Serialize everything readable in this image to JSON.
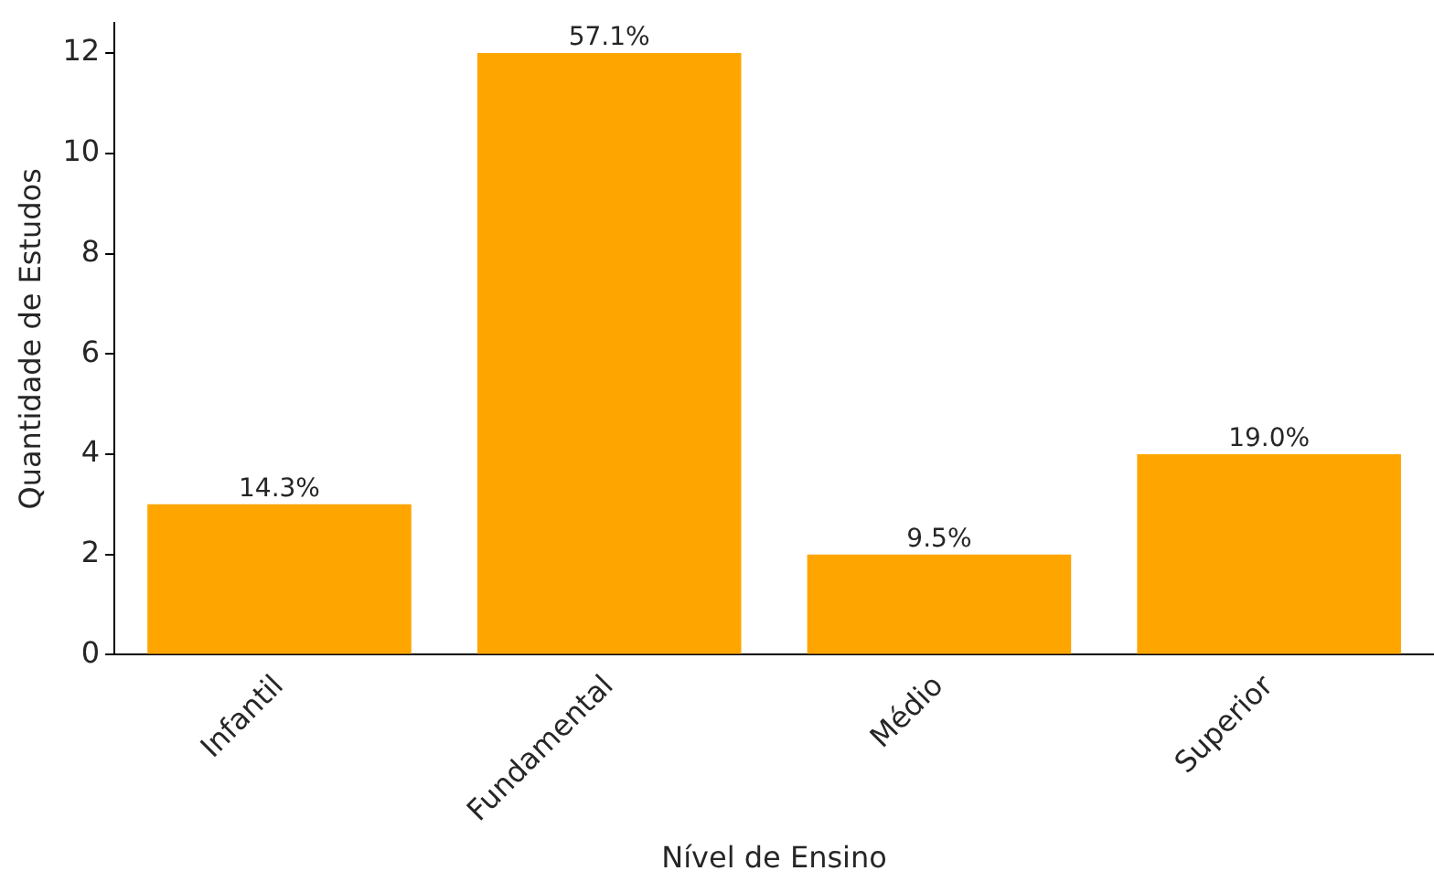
{
  "chart_data": {
    "type": "bar",
    "xlabel": "Nível de Ensino",
    "ylabel": "Quantidade de Estudos",
    "categories": [
      "Infantil",
      "Fundamental",
      "Médio",
      "Superior"
    ],
    "values": [
      3,
      12,
      2,
      4
    ],
    "color": "#ffa500",
    "annotations": [
      {
        "text": "14.3%",
        "x": "Infantil",
        "y": 3
      },
      {
        "text": "57.1%",
        "x": "Fundamental",
        "y": 12
      },
      {
        "text": "9.5%",
        "x": "Médio",
        "y": 2
      },
      {
        "text": "19.0%",
        "x": "Superior",
        "y": 4
      }
    ],
    "ylim": [
      0,
      12.6
    ],
    "yticks": [
      0,
      2,
      4,
      6,
      8,
      10,
      12
    ],
    "grid": false,
    "legend": false
  }
}
